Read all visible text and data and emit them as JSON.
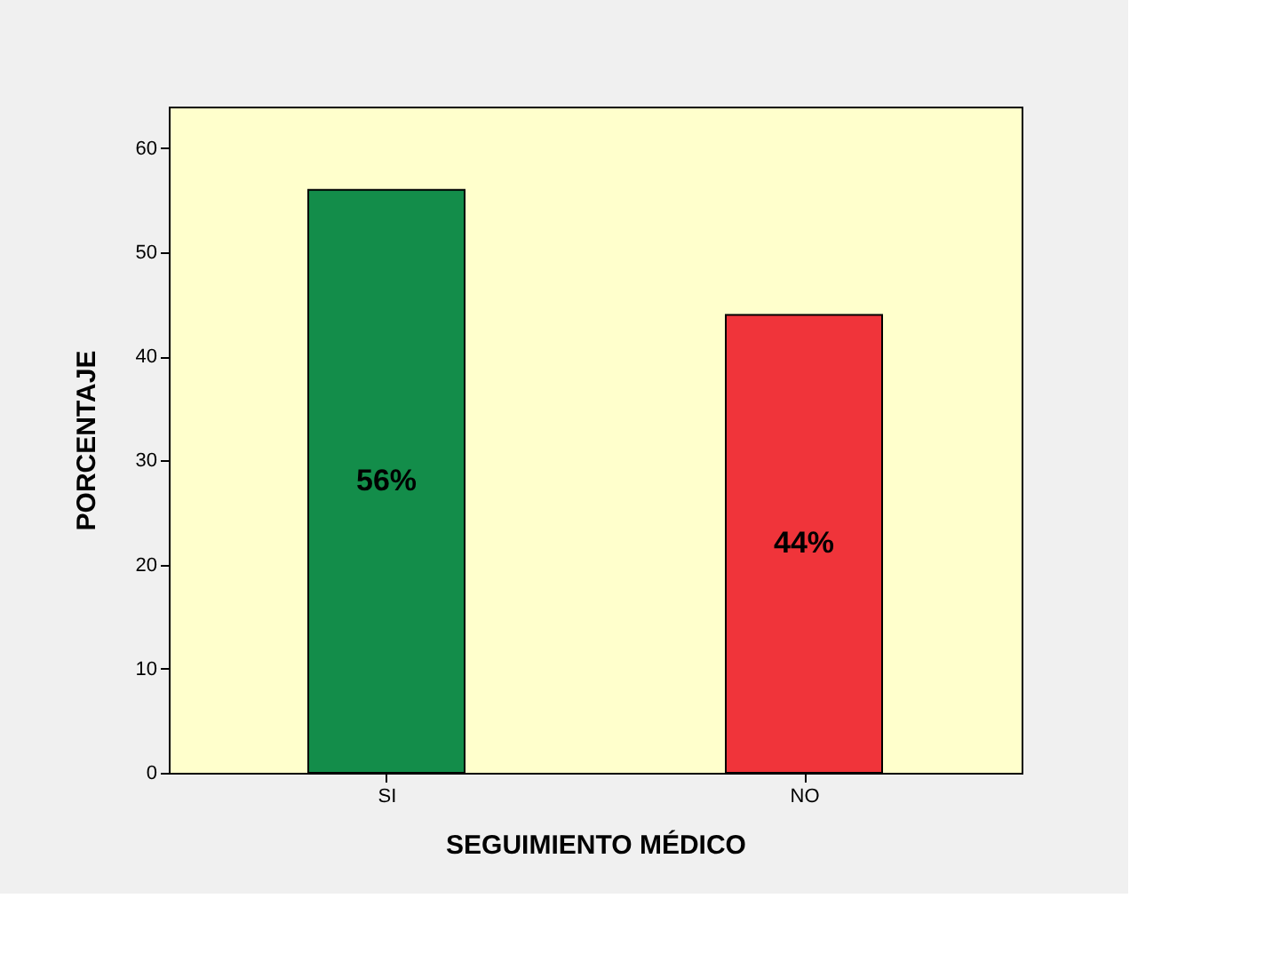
{
  "chart_data": {
    "type": "bar",
    "xlabel": "SEGUIMIENTO MÉDICO",
    "ylabel": "PORCENTAJE",
    "categories": [
      "SI",
      "NO"
    ],
    "values": [
      56,
      44
    ],
    "colors": [
      "#138d4a",
      "#f0343a"
    ],
    "value_labels": [
      "56%",
      "44%"
    ],
    "ylim": [
      0,
      64
    ],
    "yticks": [
      0,
      10,
      20,
      30,
      40,
      50,
      60
    ],
    "grid": false
  }
}
